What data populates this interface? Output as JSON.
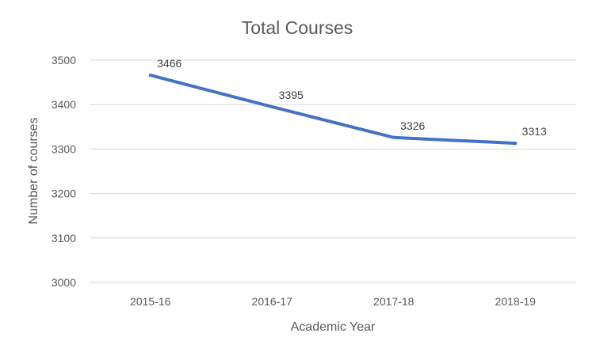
{
  "chart_data": {
    "type": "line",
    "title": "Total Courses",
    "xlabel": "Academic Year",
    "ylabel": "Number of courses",
    "categories": [
      "2015-16",
      "2016-17",
      "2017-18",
      "2018-19"
    ],
    "series": [
      {
        "values": [
          3466,
          3395,
          3326,
          3313
        ],
        "color": "#4472c4"
      }
    ],
    "data_labels": [
      "3466",
      "3395",
      "3326",
      "3313"
    ],
    "ylim": [
      3000,
      3500
    ],
    "yticks": [
      3000,
      3100,
      3200,
      3300,
      3400,
      3500
    ],
    "grid": true,
    "legend": "none"
  }
}
